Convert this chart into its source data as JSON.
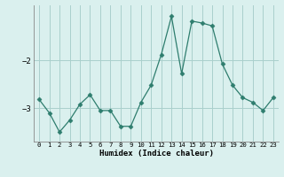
{
  "x": [
    0,
    1,
    2,
    3,
    4,
    5,
    6,
    7,
    8,
    9,
    10,
    11,
    12,
    13,
    14,
    15,
    16,
    17,
    18,
    19,
    20,
    21,
    22,
    23
  ],
  "y": [
    -2.82,
    -3.1,
    -3.5,
    -3.25,
    -2.92,
    -2.72,
    -3.05,
    -3.05,
    -3.38,
    -3.38,
    -2.88,
    -2.52,
    -1.88,
    -1.08,
    -2.28,
    -1.18,
    -1.22,
    -1.28,
    -2.08,
    -2.52,
    -2.78,
    -2.88,
    -3.05,
    -2.78
  ],
  "line_color": "#2e7d6e",
  "marker": "D",
  "marker_size": 2.5,
  "bg_color": "#daf0ee",
  "grid_color": "#aacfcc",
  "xlabel": "Humidex (Indice chaleur)",
  "ylim": [
    -3.7,
    -0.85
  ],
  "yticks": [
    -3,
    -2
  ],
  "xlim": [
    -0.5,
    23.5
  ],
  "xticks": [
    0,
    1,
    2,
    3,
    4,
    5,
    6,
    7,
    8,
    9,
    10,
    11,
    12,
    13,
    14,
    15,
    16,
    17,
    18,
    19,
    20,
    21,
    22,
    23
  ]
}
